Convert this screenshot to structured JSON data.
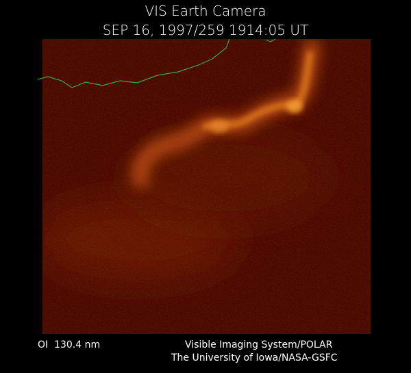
{
  "header": {
    "title": "VIS Earth Camera",
    "timestamp": "SEP 16, 1997/259 1914:05 UT"
  },
  "footer": {
    "wavelength": "OI  130.4 nm",
    "instrument": "Visible Imaging System/POLAR",
    "institution": "The University of Iowa/NASA-GSFC"
  }
}
